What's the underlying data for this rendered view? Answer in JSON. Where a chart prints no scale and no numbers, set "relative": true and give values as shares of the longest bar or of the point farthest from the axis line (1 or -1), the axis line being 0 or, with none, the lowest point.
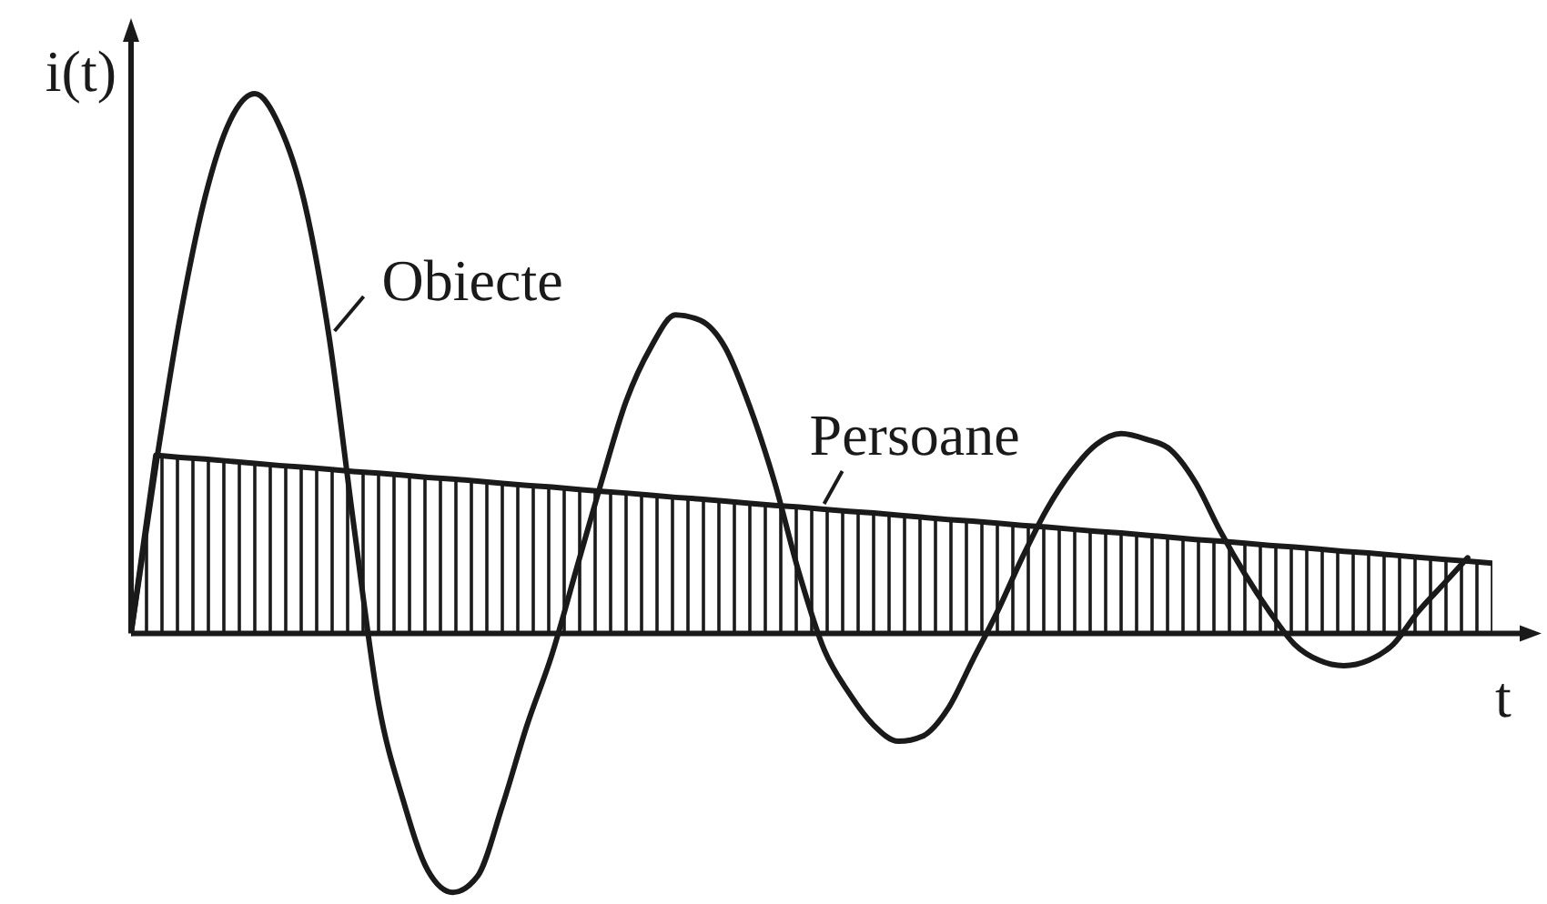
{
  "chart_data": {
    "type": "line",
    "xlabel": "t",
    "ylabel": "i(t)",
    "relative": true,
    "categories": [
      null,
      null,
      null,
      null,
      null,
      null,
      null,
      null,
      null,
      null,
      null,
      null,
      null,
      null,
      null,
      null,
      null,
      null,
      null,
      null,
      null,
      null,
      null,
      null,
      null,
      null,
      null,
      null,
      null,
      null,
      null,
      null,
      null,
      null,
      null,
      null,
      null,
      null,
      null,
      null,
      null,
      null,
      null,
      null,
      null,
      null,
      null,
      null,
      null,
      null,
      null,
      null,
      null,
      null,
      null,
      null
    ],
    "series": [
      {
        "name": "Obiecte",
        "color": "#1a1a1a",
        "values": [
          0,
          0.31,
          0.59,
          0.81,
          0.95,
          1,
          0.94,
          0.8,
          0.55,
          0.2,
          -0.13,
          -0.31,
          -0.44,
          -0.48,
          -0.45,
          -0.32,
          -0.17,
          -0.04,
          0.12,
          0.28,
          0.43,
          0.53,
          0.59,
          0.58,
          0.53,
          0.42,
          0.28,
          0.11,
          -0.03,
          -0.11,
          -0.17,
          -0.2,
          -0.19,
          -0.14,
          -0.05,
          0.04,
          0.14,
          0.23,
          0.3,
          0.35,
          0.37,
          0.36,
          0.34,
          0.28,
          0.19,
          0.11,
          0.04,
          -0.02,
          -0.05,
          -0.06,
          -0.05,
          -0.02,
          0.04,
          0.09,
          0.14,
          null
        ]
      },
      {
        "name": "Persoane",
        "type": "area",
        "color": "#1a1a1a",
        "values": [
          0,
          0.33,
          0.326,
          0.323,
          0.319,
          0.315,
          0.311,
          0.308,
          0.304,
          0.3,
          0.297,
          0.293,
          0.289,
          0.286,
          0.282,
          0.278,
          0.274,
          0.271,
          0.267,
          0.263,
          0.26,
          0.256,
          0.252,
          0.249,
          0.245,
          0.241,
          0.237,
          0.234,
          0.23,
          0.226,
          0.223,
          0.219,
          0.215,
          0.211,
          0.208,
          0.204,
          0.2,
          0.197,
          0.193,
          0.189,
          0.186,
          0.182,
          0.178,
          0.174,
          0.171,
          0.167,
          0.163,
          0.16,
          0.156,
          0.152,
          0.149,
          0.145,
          0.141,
          0.137,
          0.134,
          0.13
        ]
      }
    ]
  }
}
